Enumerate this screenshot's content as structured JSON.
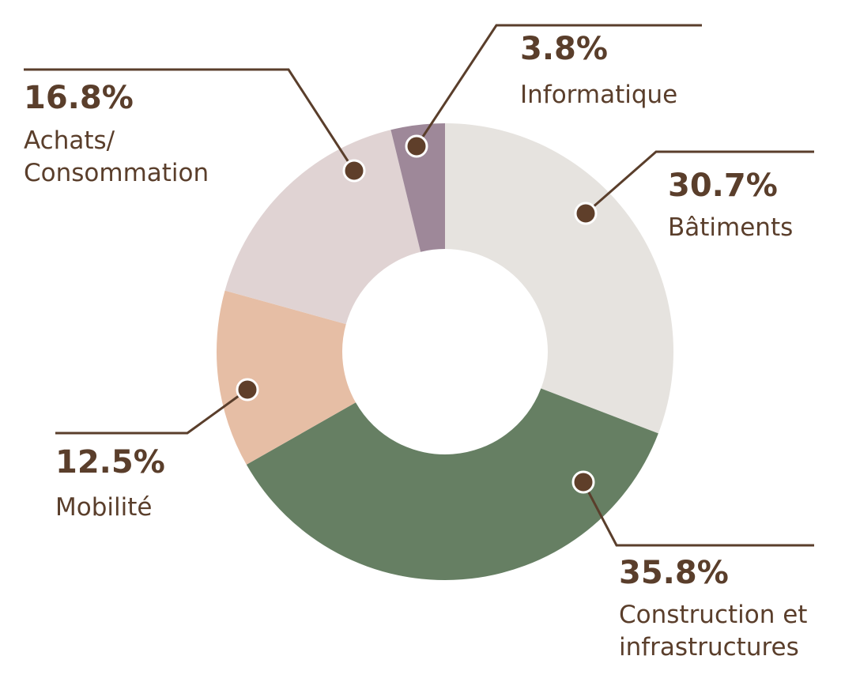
{
  "chart_data": {
    "type": "donut",
    "categories": [
      "Bâtiments",
      "Construction et\ninfrastructures",
      "Mobilité",
      "Achats/\nConsommation",
      "Informatique"
    ],
    "values": [
      30.7,
      35.8,
      12.5,
      16.8,
      3.8
    ],
    "value_labels": [
      "30.7%",
      "35.8%",
      "12.5%",
      "16.8%",
      "3.8%"
    ],
    "colors": [
      "#e6e3df",
      "#667f63",
      "#e6bea5",
      "#e0d3d3",
      "#9e8899"
    ]
  }
}
